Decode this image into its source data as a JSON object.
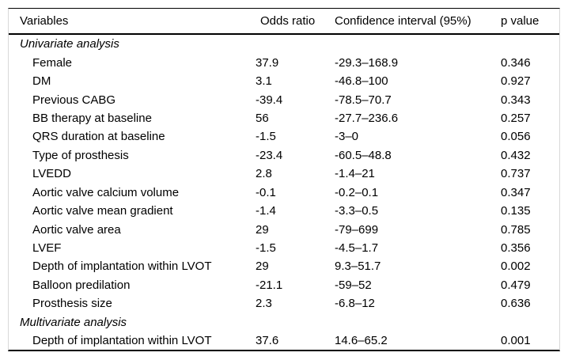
{
  "table": {
    "columns": [
      "Variables",
      "Odds ratio",
      "Confidence interval (95%)",
      "p value"
    ],
    "sections": [
      {
        "label": "Univariate analysis",
        "rows": [
          {
            "variable": "Female",
            "odds_ratio": "37.9",
            "ci": "-29.3–168.9",
            "p": "0.346"
          },
          {
            "variable": "DM",
            "odds_ratio": "3.1",
            "ci": "-46.8–100",
            "p": "0.927"
          },
          {
            "variable": "Previous CABG",
            "odds_ratio": "-39.4",
            "ci": "-78.5–70.7",
            "p": "0.343"
          },
          {
            "variable": "BB therapy at baseline",
            "odds_ratio": "56",
            "ci": "-27.7–236.6",
            "p": "0.257"
          },
          {
            "variable": "QRS duration at baseline",
            "odds_ratio": "-1.5",
            "ci": "-3–0",
            "p": "0.056"
          },
          {
            "variable": "Type of prosthesis",
            "odds_ratio": "-23.4",
            "ci": "-60.5–48.8",
            "p": "0.432"
          },
          {
            "variable": "LVEDD",
            "odds_ratio": "2.8",
            "ci": "-1.4–21",
            "p": "0.737"
          },
          {
            "variable": "Aortic valve calcium volume",
            "odds_ratio": "-0.1",
            "ci": "-0.2–0.1",
            "p": "0.347"
          },
          {
            "variable": "Aortic valve mean gradient",
            "odds_ratio": "-1.4",
            "ci": "-3.3–0.5",
            "p": "0.135"
          },
          {
            "variable": "Aortic valve area",
            "odds_ratio": "29",
            "ci": "-79–699",
            "p": "0.785"
          },
          {
            "variable": "LVEF",
            "odds_ratio": "-1.5",
            "ci": "-4.5–1.7",
            "p": "0.356"
          },
          {
            "variable": "Depth of implantation within LVOT",
            "odds_ratio": "29",
            "ci": "9.3–51.7",
            "p": "0.002"
          },
          {
            "variable": "Balloon predilation",
            "odds_ratio": "-21.1",
            "ci": "-59–52",
            "p": "0.479"
          },
          {
            "variable": "Prosthesis size",
            "odds_ratio": "2.3",
            "ci": "-6.8–12",
            "p": "0.636"
          }
        ]
      },
      {
        "label": "Multivariate analysis",
        "rows": [
          {
            "variable": "Depth of implantation within LVOT",
            "odds_ratio": "37.6",
            "ci": "14.6–65.2",
            "p": "0.001"
          }
        ]
      }
    ]
  }
}
